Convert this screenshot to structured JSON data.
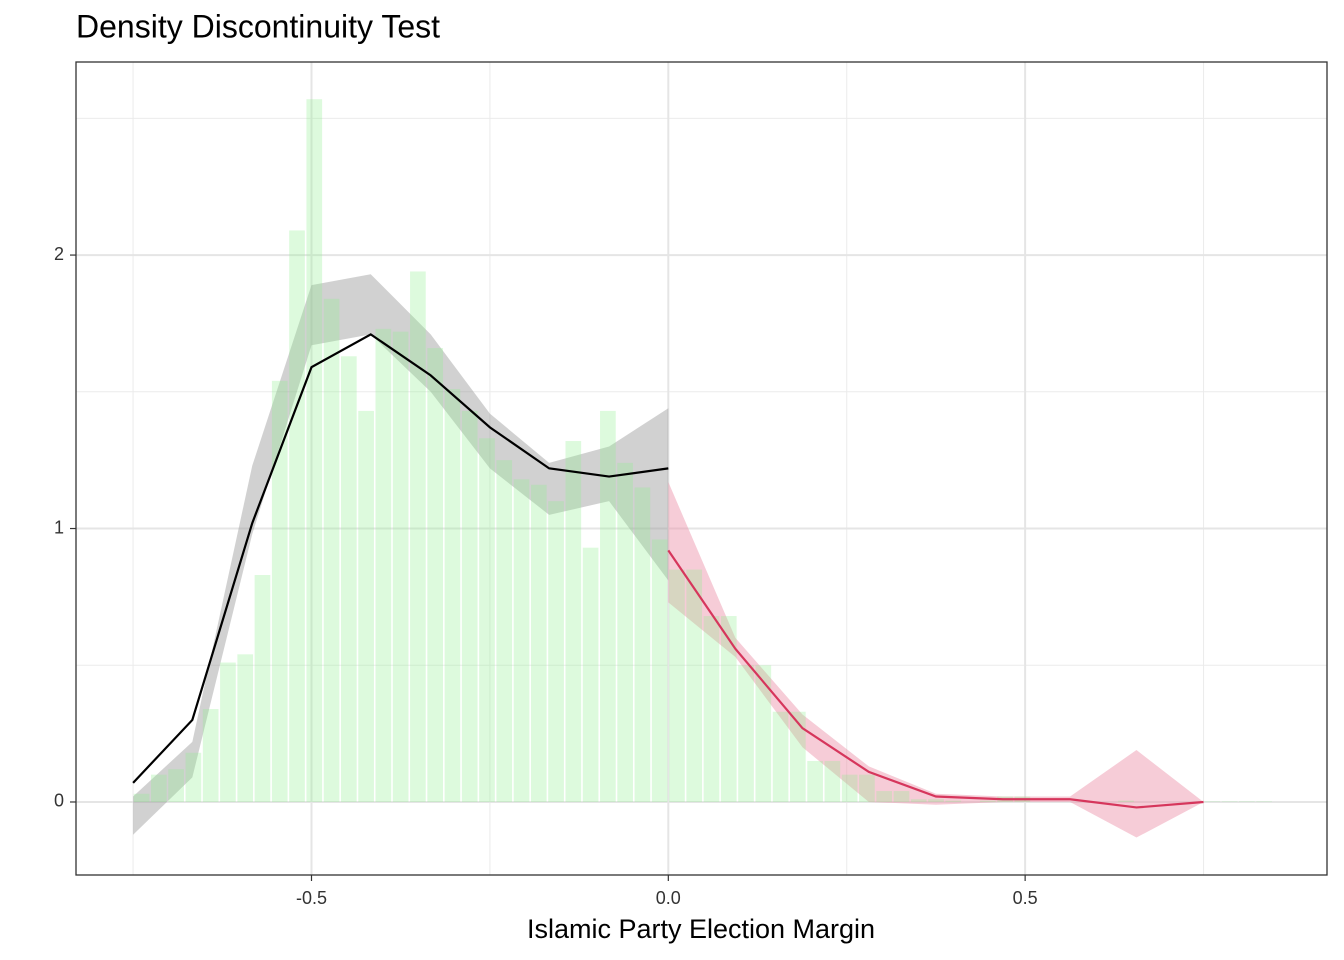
{
  "chart_data": {
    "type": "histogram",
    "title": "Density Discontinuity Test",
    "x_label": "Islamic Party Election Margin",
    "xlim": [
      -0.83,
      0.923
    ],
    "ylim": [
      -0.267,
      2.706
    ],
    "xticks": [
      -0.5,
      {
        "value": 0,
        "label": "0.0"
      },
      0.5
    ],
    "yticks": [
      0,
      1,
      2
    ],
    "x_minor_grid": [
      -0.75,
      -0.25,
      0.25,
      0.75
    ],
    "y_minor_grid": [
      0.5,
      1.5,
      2.5
    ],
    "grid": true,
    "color": "#90ee90",
    "bins": [
      -0.7502,
      -0.726,
      -0.7018,
      -0.6776,
      -0.6534,
      -0.6292,
      -0.605,
      -0.5808,
      -0.5566,
      -0.5324,
      -0.5082,
      -0.484,
      -0.4598,
      -0.4356,
      -0.4114,
      -0.3872,
      -0.363,
      -0.3388,
      -0.3146,
      -0.2904,
      -0.2662,
      -0.242,
      -0.2178,
      -0.1936,
      -0.1694,
      -0.1452,
      -0.121,
      -0.0968,
      -0.0726,
      -0.0484,
      -0.0242,
      0,
      0.0242,
      0.0484,
      0.0726,
      0.0968,
      0.121,
      0.1452,
      0.1694,
      0.1936,
      0.2178,
      0.242,
      0.2662,
      0.2904,
      0.3146,
      0.3388,
      0.363,
      0.3872,
      0.4114,
      0.4356,
      0.4598,
      0.484,
      0.5082,
      0.5324,
      0.5566,
      0.5808,
      0.605,
      0.6292,
      0.6534,
      0.6776,
      0.7018,
      0.726,
      0.7502,
      0.7744,
      0.7986,
      0.8228,
      0.847
    ],
    "values": [
      0.03,
      0.1,
      0.12,
      0.18,
      0.34,
      0.51,
      0.54,
      0.83,
      1.54,
      2.09,
      2.57,
      1.84,
      1.63,
      1.43,
      1.73,
      1.72,
      1.94,
      1.66,
      1.51,
      1.43,
      1.33,
      1.25,
      1.18,
      1.16,
      1.1,
      1.32,
      0.93,
      1.43,
      1.24,
      1.15,
      0.96,
      0.85,
      0.85,
      0.68,
      0.68,
      0.5,
      0.5,
      0.33,
      0.33,
      0.15,
      0.15,
      0.1,
      0.1,
      0.04,
      0.04,
      0.01,
      0.01,
      0.005,
      0,
      0.005,
      0.02,
      0.02,
      0,
      0,
      0,
      0,
      0,
      0.005,
      0,
      0,
      0,
      0,
      0.002,
      0.002,
      0.002,
      0.002
    ],
    "series": [
      {
        "color": "#000000",
        "band_color": "#999999",
        "x": [
          -0.75,
          -0.667,
          -0.583,
          -0.5,
          -0.417,
          -0.333,
          -0.25,
          -0.167,
          -0.083,
          0
        ],
        "values": [
          0.07,
          0.3,
          1.02,
          1.59,
          1.71,
          1.56,
          1.37,
          1.22,
          1.19,
          1.22
        ],
        "lower": [
          -0.12,
          0.09,
          0.98,
          1.67,
          1.71,
          1.5,
          1.22,
          1.05,
          1.1,
          0.81
        ],
        "upper": [
          0.02,
          0.22,
          1.23,
          1.89,
          1.93,
          1.71,
          1.42,
          1.24,
          1.3,
          1.44
        ]
      },
      {
        "color": "#d6365c",
        "band_color": "#eb8fa6",
        "x": [
          0,
          0.094,
          0.188,
          0.281,
          0.375,
          0.469,
          0.563,
          0.656,
          0.75
        ],
        "values": [
          0.92,
          0.56,
          0.27,
          0.11,
          0.02,
          0.01,
          0.01,
          -0.02,
          0
        ],
        "lower": [
          0.73,
          0.53,
          0.2,
          0,
          -0.01,
          0,
          0,
          -0.13,
          0
        ],
        "upper": [
          1.17,
          0.6,
          0.32,
          0.13,
          0.03,
          0.02,
          0.02,
          0.19,
          0
        ]
      }
    ]
  }
}
